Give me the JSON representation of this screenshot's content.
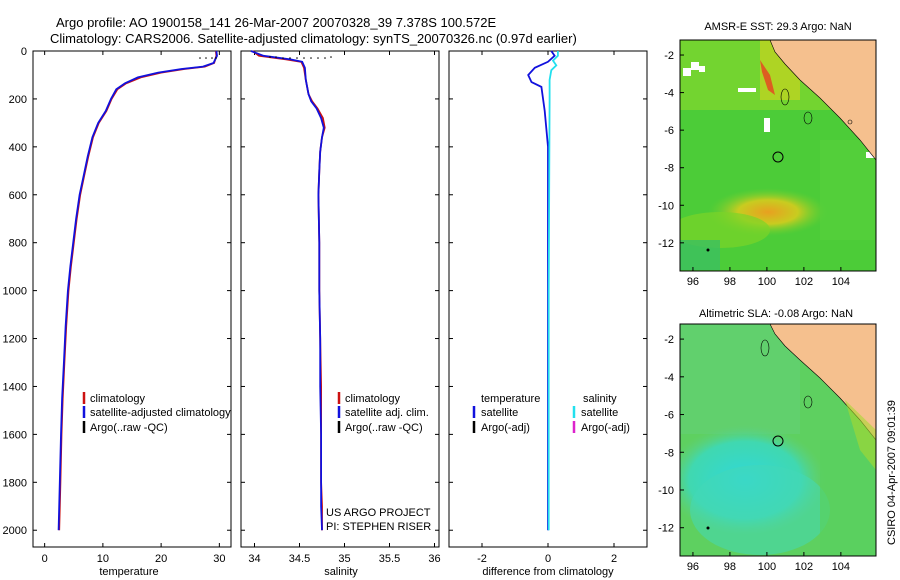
{
  "title_line1": "Argo profile: AO 1900158_141 26-Mar-2007 20070328_39 7.378S 100.572E",
  "title_line2": "Climatology: CARS2006. Satellite-adjusted climatology: synTS_20070326.nc (0.97d earlier)",
  "colors": {
    "climatology": "#cc1111",
    "satellite": "#1111dd",
    "argo": "#000000",
    "salinity_satellite": "#22e0ee",
    "salinity_argo": "#dd22cc"
  },
  "chart_data": [
    {
      "type": "line",
      "id": "temperature",
      "xlabel": "temperature",
      "ylabel": "",
      "xlim": [
        -2,
        32
      ],
      "ylim": [
        2070,
        0
      ],
      "xticks": [
        0,
        10,
        20,
        30
      ],
      "yticks": [
        0,
        200,
        400,
        600,
        800,
        1000,
        1200,
        1400,
        1600,
        1800,
        2000
      ],
      "series": [
        {
          "name": "climatology",
          "color": "#cc1111",
          "x": [
            29.4,
            29.5,
            29.1,
            27.5,
            24,
            20,
            16.5,
            14,
            12.5,
            11.5,
            10.6,
            9.3,
            8.3,
            7.5,
            6.8,
            6.1,
            5.5,
            5.0,
            4.5,
            4.1,
            3.7,
            3.4,
            3.1,
            2.9,
            2.7,
            2.5
          ],
          "y": [
            0,
            20,
            50,
            65,
            75,
            90,
            110,
            135,
            160,
            200,
            250,
            300,
            360,
            440,
            520,
            600,
            700,
            800,
            900,
            1000,
            1150,
            1300,
            1450,
            1600,
            1800,
            2000
          ]
        },
        {
          "name": "satellite-adjusted climatology",
          "color": "#1111dd",
          "x": [
            29.5,
            29.6,
            29.0,
            27.2,
            23.5,
            19.5,
            16,
            13.8,
            12.3,
            11.4,
            10.5,
            9.2,
            8.2,
            7.4,
            6.7,
            6.0,
            5.4,
            4.9,
            4.4,
            4.0,
            3.6,
            3.3,
            3.0,
            2.8,
            2.6,
            2.4
          ],
          "y": [
            0,
            20,
            50,
            65,
            75,
            90,
            110,
            135,
            160,
            200,
            250,
            300,
            360,
            440,
            520,
            600,
            700,
            800,
            900,
            1000,
            1150,
            1300,
            1450,
            1600,
            1800,
            2000
          ]
        }
      ],
      "legend": [
        "climatology",
        "satellite-adjusted climatology",
        "Argo(..raw -QC)"
      ]
    },
    {
      "type": "line",
      "id": "salinity",
      "xlabel": "salinity",
      "ylabel": "",
      "xlim": [
        33.85,
        36.05
      ],
      "ylim": [
        2070,
        0
      ],
      "xticks": [
        34,
        34.5,
        35,
        35.5,
        36
      ],
      "series": [
        {
          "name": "climatology",
          "color": "#cc1111",
          "x": [
            33.98,
            34.05,
            34.35,
            34.52,
            34.55,
            34.57,
            34.6,
            34.64,
            34.7,
            34.76,
            34.78,
            34.75,
            34.73,
            34.72,
            34.71,
            34.72,
            34.72,
            34.73,
            34.74,
            34.74,
            34.74,
            34.75,
            34.75
          ],
          "y": [
            0,
            20,
            35,
            45,
            70,
            120,
            180,
            210,
            240,
            280,
            320,
            360,
            420,
            500,
            600,
            800,
            1000,
            1200,
            1400,
            1600,
            1800,
            1900,
            2000
          ]
        },
        {
          "name": "satellite adj. clim.",
          "color": "#1111dd",
          "x": [
            33.96,
            34.1,
            34.4,
            34.53,
            34.56,
            34.57,
            34.6,
            34.63,
            34.69,
            34.74,
            34.77,
            34.75,
            34.73,
            34.72,
            34.71,
            34.72,
            34.72,
            34.73,
            34.73,
            34.74,
            34.74,
            34.74,
            34.75
          ],
          "y": [
            0,
            20,
            35,
            45,
            70,
            120,
            180,
            210,
            240,
            280,
            320,
            360,
            420,
            500,
            600,
            800,
            1000,
            1200,
            1400,
            1600,
            1800,
            1900,
            2000
          ]
        }
      ],
      "legend": [
        "climatology",
        "satellite adj. clim.",
        "Argo(..raw -QC)"
      ],
      "annotation": [
        "US ARGO PROJECT",
        "PI: STEPHEN RISER"
      ]
    },
    {
      "type": "line",
      "id": "difference",
      "xlabel": "difference from climatology",
      "ylabel": "",
      "xlim": [
        -3,
        3
      ],
      "ylim": [
        2070,
        0
      ],
      "xticks": [
        -2,
        0,
        2
      ],
      "series": [
        {
          "name": "temperature satellite",
          "color": "#1111dd",
          "x": [
            0.1,
            0.2,
            0.0,
            -0.4,
            -0.6,
            -0.5,
            -0.2,
            -0.1,
            0.0,
            0.0,
            0.0
          ],
          "y": [
            0,
            20,
            45,
            70,
            100,
            130,
            150,
            250,
            400,
            1000,
            2000
          ]
        },
        {
          "name": "salinity satellite",
          "color": "#22e0ee",
          "x": [
            0.3,
            0.3,
            0.15,
            0.25,
            0.1,
            0.05,
            0.05,
            0.02,
            0.02
          ],
          "y": [
            0,
            20,
            40,
            60,
            80,
            120,
            200,
            1000,
            2000
          ]
        }
      ],
      "legend_left": [
        "temperature",
        "satellite",
        "Argo(-adj)"
      ],
      "legend_right": [
        "salinity",
        "satellite",
        "Argo(-adj)"
      ]
    }
  ],
  "maps": [
    {
      "title": "AMSR-E SST: 29.3 Argo: NaN",
      "xticks": [
        "96",
        "98",
        "100",
        "102",
        "104"
      ],
      "yticks": [
        "-2",
        "-4",
        "-6",
        "-8",
        "-10",
        "-12"
      ]
    },
    {
      "title": "Altimetric SLA: -0.08 Argo: NaN",
      "xticks": [
        "96",
        "98",
        "100",
        "102",
        "104"
      ],
      "yticks": [
        "-2",
        "-4",
        "-6",
        "-8",
        "-10",
        "-12"
      ]
    }
  ],
  "credit": "CSIRO 04-Apr-2007 09:01:39"
}
